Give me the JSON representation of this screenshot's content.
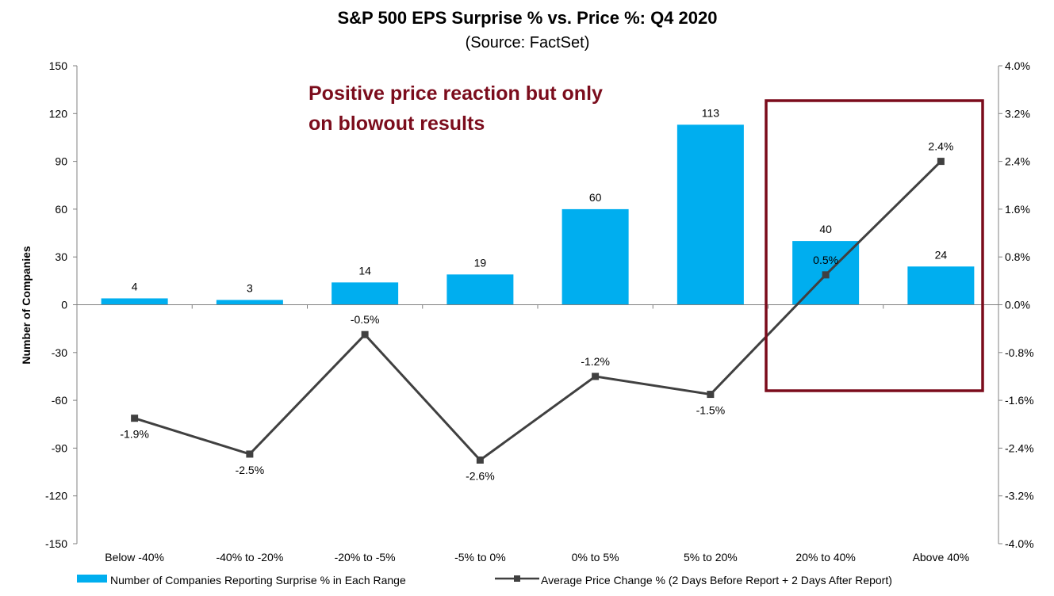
{
  "chart_data": {
    "type": "bar+line",
    "title": "S&P 500 EPS Surprise % vs. Price %: Q4 2020",
    "subtitle": "(Source: FactSet)",
    "ylabel_left": "Number of Companies",
    "ylim_left": [
      -150,
      150
    ],
    "yticks_left": [
      "150",
      "120",
      "90",
      "60",
      "30",
      "0",
      "-30",
      "-60",
      "-90",
      "-120",
      "-150"
    ],
    "ylim_right": [
      -4.0,
      4.0
    ],
    "yticks_right": [
      "4.0%",
      "3.2%",
      "2.4%",
      "1.6%",
      "0.8%",
      "0.0%",
      "-0.8%",
      "-1.6%",
      "-2.4%",
      "-3.2%",
      "-4.0%"
    ],
    "categories": [
      "Below -40%",
      "-40% to -20%",
      "-20% to -5%",
      "-5% to 0%",
      "0% to 5%",
      "5% to 20%",
      "20% to 40%",
      "Above 40%"
    ],
    "series": [
      {
        "name": "Number of Companies Reporting Surprise % in Each Range",
        "type": "bar",
        "axis": "left",
        "values": [
          4,
          3,
          14,
          19,
          60,
          113,
          40,
          24
        ],
        "labels": [
          "4",
          "3",
          "14",
          "19",
          "60",
          "113",
          "40",
          "24"
        ]
      },
      {
        "name": "Average Price Change % (2 Days Before Report + 2 Days After Report)",
        "type": "line",
        "axis": "right",
        "values": [
          -1.9,
          -2.5,
          -0.5,
          -2.6,
          -1.2,
          -1.5,
          0.5,
          2.4
        ],
        "labels": [
          "-1.9%",
          "-2.5%",
          "-0.5%",
          "-2.6%",
          "-1.2%",
          "-1.5%",
          "0.5%",
          "2.4%"
        ]
      }
    ],
    "annotation": {
      "lines": [
        "Positive price reaction but only",
        "on blowout results"
      ],
      "highlight_categories": [
        "20% to 40%",
        "Above 40%"
      ]
    },
    "colors": {
      "bar": "#00AEEF",
      "line": "#404040",
      "annotation": "#7B0C1C",
      "axis": "#808080"
    }
  }
}
